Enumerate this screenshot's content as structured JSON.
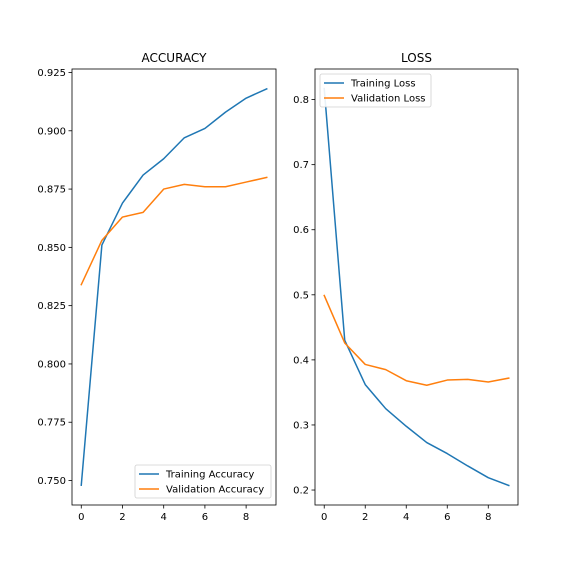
{
  "chart_data": [
    {
      "type": "line",
      "title": "ACCURACY",
      "xlabel": "",
      "ylabel": "",
      "x": [
        0,
        1,
        2,
        3,
        4,
        5,
        6,
        7,
        8,
        9
      ],
      "xlim": [
        -0.45,
        9.45
      ],
      "ylim": [
        0.7395,
        0.9265
      ],
      "xticks": [
        0,
        2,
        4,
        6,
        8
      ],
      "yticks": [
        0.75,
        0.775,
        0.8,
        0.825,
        0.85,
        0.875,
        0.9,
        0.925
      ],
      "ytick_labels": [
        "0.750",
        "0.775",
        "0.800",
        "0.825",
        "0.850",
        "0.875",
        "0.900",
        "0.925"
      ],
      "grid": false,
      "legend_position": "lower right",
      "series": [
        {
          "name": "Training Accuracy",
          "color": "#1f77b4",
          "values": [
            0.748,
            0.851,
            0.869,
            0.881,
            0.888,
            0.897,
            0.901,
            0.908,
            0.914,
            0.918
          ]
        },
        {
          "name": "Validation Accuracy",
          "color": "#ff7f0e",
          "values": [
            0.834,
            0.853,
            0.863,
            0.865,
            0.875,
            0.877,
            0.876,
            0.876,
            0.878,
            0.88
          ]
        }
      ]
    },
    {
      "type": "line",
      "title": "LOSS",
      "xlabel": "",
      "ylabel": "",
      "x": [
        0,
        1,
        2,
        3,
        4,
        5,
        6,
        7,
        8,
        9
      ],
      "xlim": [
        -0.45,
        9.45
      ],
      "ylim": [
        0.177,
        0.847
      ],
      "xticks": [
        0,
        2,
        4,
        6,
        8
      ],
      "yticks": [
        0.2,
        0.3,
        0.4,
        0.5,
        0.6,
        0.7,
        0.8
      ],
      "ytick_labels": [
        "0.2",
        "0.3",
        "0.4",
        "0.5",
        "0.6",
        "0.7",
        "0.8"
      ],
      "grid": false,
      "legend_position": "upper left",
      "series": [
        {
          "name": "Training Loss",
          "color": "#1f77b4",
          "values": [
            0.817,
            0.43,
            0.362,
            0.325,
            0.298,
            0.273,
            0.256,
            0.237,
            0.219,
            0.207
          ]
        },
        {
          "name": "Validation Loss",
          "color": "#ff7f0e",
          "values": [
            0.499,
            0.426,
            0.393,
            0.385,
            0.368,
            0.361,
            0.369,
            0.37,
            0.366,
            0.372
          ]
        }
      ]
    }
  ]
}
